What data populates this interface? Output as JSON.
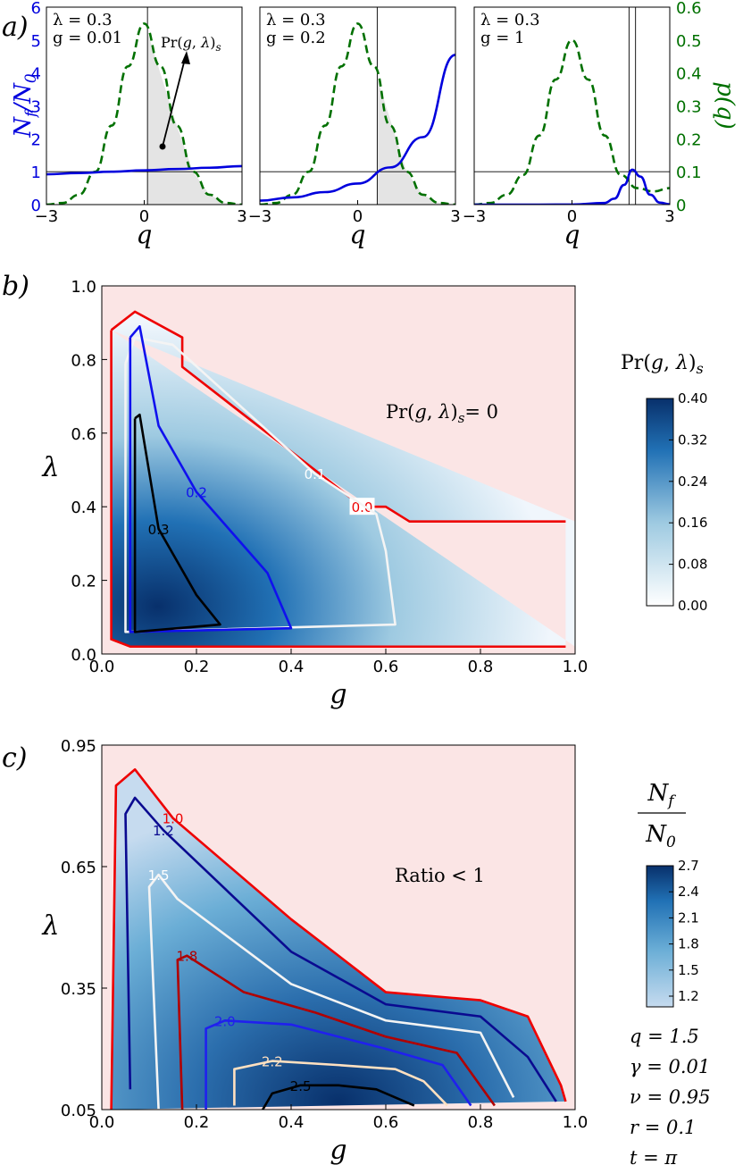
{
  "chart_data": [
    {
      "panel": "a",
      "panel_label": "a)",
      "type": "line",
      "left_axis_label": "Nf/N0",
      "right_axis_label": "p(q)",
      "left_ticks": [
        0,
        1,
        2,
        3,
        4,
        5,
        6
      ],
      "right_ticks": [
        0,
        0.1,
        0.2,
        0.3,
        0.4,
        0.5,
        0.6
      ],
      "xticks": [
        -3,
        0,
        3
      ],
      "xlabel": "q",
      "colors": {
        "ratio": "#0000dd",
        "density": "#007000",
        "shade": "#e4e4e4"
      },
      "subplots": [
        {
          "lambda_label": "λ = 0.3",
          "g_label": "g = 0.01",
          "threshold_q": 0.1,
          "annotation": "Pr(g,λ)s",
          "ratio": {
            "x": [
              -3,
              -2,
              -1,
              0,
              1,
              2,
              3
            ],
            "y": [
              0.92,
              0.96,
              1.0,
              1.04,
              1.08,
              1.12,
              1.17
            ]
          },
          "density": {
            "x": [
              -3,
              -2.5,
              -2,
              -1.5,
              -1,
              -0.5,
              0,
              0.5,
              1,
              1.5,
              2,
              2.5,
              3
            ],
            "y": [
              0.0,
              0.005,
              0.03,
              0.1,
              0.24,
              0.42,
              0.55,
              0.42,
              0.24,
              0.1,
              0.03,
              0.005,
              0.0
            ]
          }
        },
        {
          "lambda_label": "λ = 0.3",
          "g_label": "g = 0.2",
          "threshold_q": 0.6,
          "ratio": {
            "x": [
              -3,
              -2,
              -1,
              0,
              1,
              2,
              3
            ],
            "y": [
              0.12,
              0.22,
              0.38,
              0.64,
              1.13,
              2.05,
              4.55
            ]
          },
          "density": {
            "x": [
              -3,
              -2.5,
              -2,
              -1.5,
              -1,
              -0.5,
              0,
              0.5,
              1,
              1.5,
              2,
              2.5,
              3
            ],
            "y": [
              0.0,
              0.005,
              0.03,
              0.1,
              0.24,
              0.42,
              0.55,
              0.42,
              0.24,
              0.1,
              0.03,
              0.005,
              0.0
            ]
          }
        },
        {
          "lambda_label": "λ = 0.3",
          "g_label": "g = 1",
          "threshold_q": [
            1.75,
            1.95
          ],
          "ratio": {
            "x": [
              -3,
              -1,
              0,
              1,
              1.3,
              1.6,
              1.85,
              2.1,
              2.4,
              2.7,
              3
            ],
            "y": [
              0,
              0,
              0.001,
              0.05,
              0.18,
              0.6,
              1.06,
              0.85,
              0.3,
              0.06,
              0.01
            ]
          },
          "density": {
            "x": [
              -3,
              -2.5,
              -2,
              -1.5,
              -1,
              -0.5,
              0,
              0.5,
              1,
              1.5,
              2,
              2.5,
              3
            ],
            "y": [
              0.0,
              0.005,
              0.03,
              0.09,
              0.21,
              0.38,
              0.5,
              0.38,
              0.21,
              0.09,
              0.05,
              0.04,
              0.05
            ]
          }
        }
      ]
    },
    {
      "panel": "b",
      "panel_label": "b)",
      "type": "heatmap",
      "xlabel": "g",
      "ylabel": "λ",
      "xticks": [
        0.0,
        0.2,
        0.4,
        0.6,
        0.8,
        1.0
      ],
      "yticks": [
        0.0,
        0.2,
        0.4,
        0.6,
        0.8,
        1.0
      ],
      "xlim": [
        0,
        1
      ],
      "ylim": [
        0,
        1
      ],
      "annotation": "Pr(g,λ)s= 0",
      "colorbar_title": "Pr(g,λ)s",
      "colorbar_ticks": [
        "0.40",
        "0.32",
        "0.24",
        "0.16",
        "0.08",
        "0.00"
      ],
      "contours": [
        {
          "level": "0.0",
          "color": "#ee0000",
          "points": [
            [
              0.02,
              0.88
            ],
            [
              0.07,
              0.93
            ],
            [
              0.17,
              0.86
            ],
            [
              0.17,
              0.78
            ],
            [
              0.55,
              0.4
            ],
            [
              0.6,
              0.4
            ],
            [
              0.65,
              0.36
            ],
            [
              0.98,
              0.36
            ]
          ],
          "points2": [
            [
              0.02,
              0.88
            ],
            [
              0.02,
              0.04
            ],
            [
              0.06,
              0.02
            ],
            [
              0.98,
              0.02
            ]
          ]
        },
        {
          "level": "0.1",
          "color": "#f4f4f4",
          "points": [
            [
              0.05,
              0.79
            ],
            [
              0.05,
              0.06
            ],
            [
              0.62,
              0.08
            ],
            [
              0.6,
              0.28
            ],
            [
              0.58,
              0.38
            ],
            [
              0.45,
              0.49
            ],
            [
              0.15,
              0.84
            ],
            [
              0.07,
              0.86
            ],
            [
              0.05,
              0.79
            ]
          ]
        },
        {
          "level": "0.2",
          "color": "#1010ee",
          "points": [
            [
              0.06,
              0.86
            ],
            [
              0.06,
              0.06
            ],
            [
              0.4,
              0.07
            ],
            [
              0.35,
              0.22
            ],
            [
              0.2,
              0.44
            ],
            [
              0.12,
              0.62
            ],
            [
              0.08,
              0.89
            ],
            [
              0.06,
              0.86
            ]
          ]
        },
        {
          "level": "0.3",
          "color": "#000000",
          "points": [
            [
              0.07,
              0.64
            ],
            [
              0.07,
              0.06
            ],
            [
              0.25,
              0.08
            ],
            [
              0.2,
              0.16
            ],
            [
              0.12,
              0.34
            ],
            [
              0.08,
              0.65
            ],
            [
              0.07,
              0.64
            ]
          ]
        }
      ]
    },
    {
      "panel": "c",
      "panel_label": "c)",
      "type": "heatmap",
      "xlabel": "g",
      "ylabel": "λ",
      "xticks": [
        0.0,
        0.2,
        0.4,
        0.6,
        0.8,
        1.0
      ],
      "yticks": [
        0.05,
        0.35,
        0.65,
        0.95
      ],
      "xlim": [
        0,
        1
      ],
      "ylim": [
        0.05,
        0.95
      ],
      "annotation": "Ratio < 1",
      "colorbar_title_num": "Nf",
      "colorbar_title_den": "N0",
      "colorbar_ticks": [
        "2.7",
        "2.4",
        "2.1",
        "1.8",
        "1.5",
        "1.2"
      ],
      "params": [
        "q = 1.5",
        "γ = 0.01",
        "ν = 0.95",
        "r = 0.1",
        "t = π"
      ],
      "contours": [
        {
          "level": "1.0",
          "color": "#ee0000",
          "points": [
            [
              0.02,
              0.05
            ],
            [
              0.03,
              0.85
            ],
            [
              0.07,
              0.89
            ],
            [
              0.15,
              0.77
            ],
            [
              0.4,
              0.52
            ],
            [
              0.6,
              0.34
            ],
            [
              0.8,
              0.32
            ],
            [
              0.9,
              0.28
            ],
            [
              0.97,
              0.11
            ],
            [
              0.98,
              0.07
            ]
          ]
        },
        {
          "level": "1.2",
          "color": "#0a0a90",
          "points": [
            [
              0.06,
              0.1
            ],
            [
              0.05,
              0.78
            ],
            [
              0.07,
              0.82
            ],
            [
              0.13,
              0.74
            ],
            [
              0.4,
              0.44
            ],
            [
              0.6,
              0.31
            ],
            [
              0.8,
              0.28
            ],
            [
              0.9,
              0.18
            ],
            [
              0.96,
              0.07
            ]
          ]
        },
        {
          "level": "1.5",
          "color": "#f4f4f4",
          "points": [
            [
              0.12,
              0.05
            ],
            [
              0.1,
              0.6
            ],
            [
              0.12,
              0.63
            ],
            [
              0.16,
              0.57
            ],
            [
              0.4,
              0.36
            ],
            [
              0.6,
              0.27
            ],
            [
              0.8,
              0.24
            ],
            [
              0.87,
              0.08
            ]
          ]
        },
        {
          "level": "1.8",
          "color": "#b00000",
          "points": [
            [
              0.17,
              0.05
            ],
            [
              0.16,
              0.42
            ],
            [
              0.18,
              0.43
            ],
            [
              0.3,
              0.34
            ],
            [
              0.45,
              0.29
            ],
            [
              0.6,
              0.23
            ],
            [
              0.75,
              0.19
            ],
            [
              0.83,
              0.06
            ]
          ]
        },
        {
          "level": "2.0",
          "color": "#2020ee",
          "points": [
            [
              0.22,
              0.05
            ],
            [
              0.22,
              0.25
            ],
            [
              0.26,
              0.27
            ],
            [
              0.4,
              0.26
            ],
            [
              0.6,
              0.2
            ],
            [
              0.72,
              0.16
            ],
            [
              0.78,
              0.06
            ]
          ]
        },
        {
          "level": "2.2",
          "color": "#ffe0c0",
          "points": [
            [
              0.28,
              0.06
            ],
            [
              0.28,
              0.15
            ],
            [
              0.36,
              0.17
            ],
            [
              0.5,
              0.16
            ],
            [
              0.62,
              0.15
            ],
            [
              0.68,
              0.12
            ],
            [
              0.73,
              0.06
            ]
          ]
        },
        {
          "level": "2.5",
          "color": "#000000",
          "points": [
            [
              0.34,
              0.05
            ],
            [
              0.36,
              0.09
            ],
            [
              0.42,
              0.11
            ],
            [
              0.5,
              0.11
            ],
            [
              0.58,
              0.1
            ],
            [
              0.64,
              0.07
            ],
            [
              0.66,
              0.06
            ]
          ]
        }
      ]
    }
  ]
}
